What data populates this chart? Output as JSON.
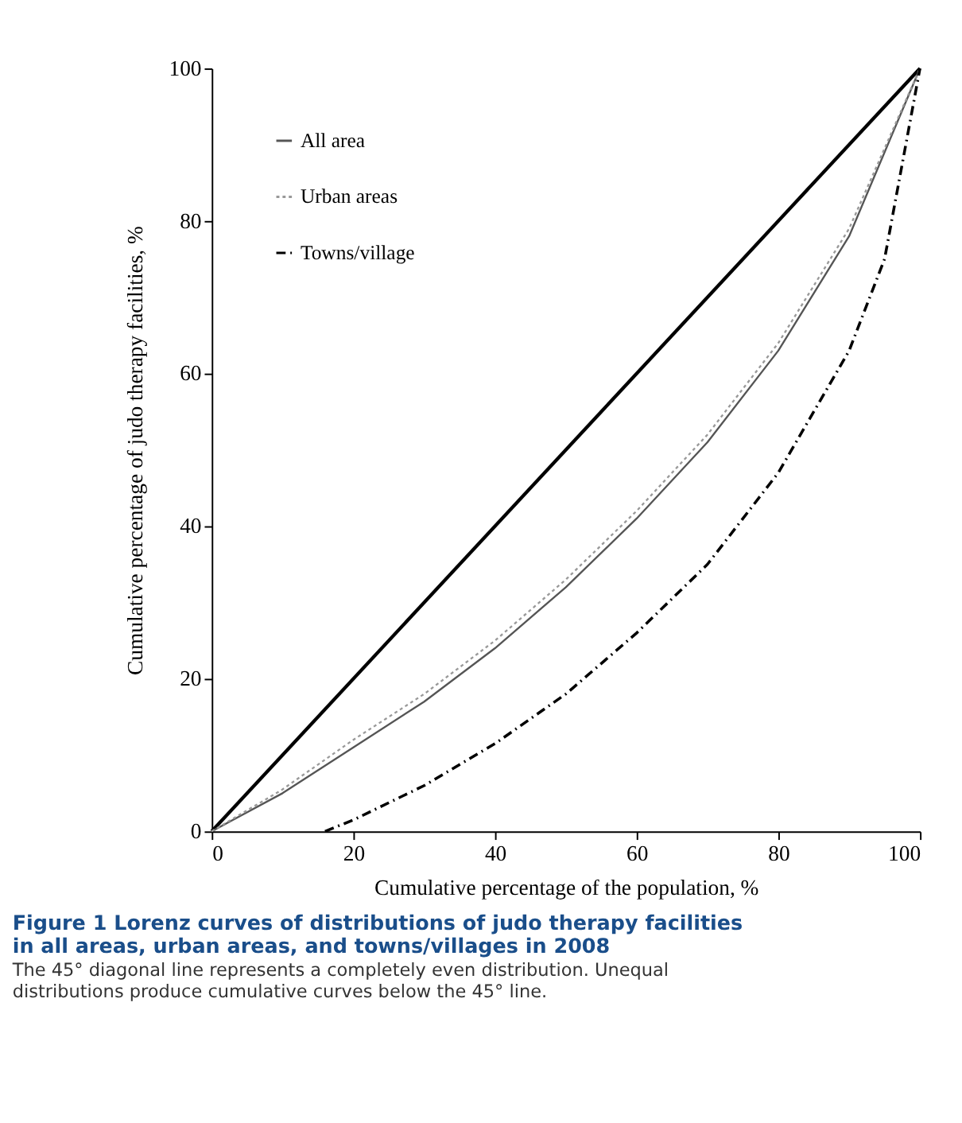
{
  "chart_data": {
    "type": "line",
    "title": "Figure 1 Lorenz curves of distributions of judo therapy facilities in all areas, urban areas, and towns/villages in 2008",
    "subtitle": "The 45° diagonal line represents a completely even distribution. Unequal distributions produce cumulative curves below the 45° line.",
    "xlabel": "Cumulative percentage of  the population, %",
    "ylabel": "Cumulative percentage of judo therapy facilities, %",
    "xlim": [
      0,
      100
    ],
    "ylim": [
      0,
      100
    ],
    "xticks": [
      0,
      20,
      40,
      60,
      80,
      100
    ],
    "yticks": [
      0,
      20,
      40,
      60,
      80,
      100
    ],
    "grid": false,
    "legend": "top left",
    "marker": "none",
    "series": [
      {
        "color": "#000000",
        "line_style": "solid",
        "x": [
          0,
          100
        ],
        "values": [
          0,
          100
        ]
      },
      {
        "name": "All area",
        "color": "#555555",
        "line_style": "solid",
        "x": [
          0,
          10,
          20,
          30,
          40,
          50,
          60,
          70,
          80,
          90,
          100
        ],
        "values": [
          0,
          5,
          11,
          17,
          24,
          32,
          41,
          51,
          63,
          78,
          100
        ]
      },
      {
        "name": "Urban areas",
        "color": "#999999",
        "line_style": "dotted",
        "x": [
          0,
          10,
          20,
          30,
          40,
          50,
          60,
          70,
          80,
          90,
          100
        ],
        "values": [
          0,
          5.5,
          12,
          18,
          25,
          33,
          42,
          52,
          64,
          79,
          100
        ]
      },
      {
        "name": "Towns/village",
        "color": "#000000",
        "line_style": "dashdot",
        "x": [
          16,
          20,
          30,
          40,
          50,
          60,
          70,
          80,
          90,
          95,
          100
        ],
        "values": [
          0,
          1.5,
          6,
          11.5,
          18,
          26,
          35,
          47,
          63,
          75,
          100
        ]
      }
    ]
  }
}
